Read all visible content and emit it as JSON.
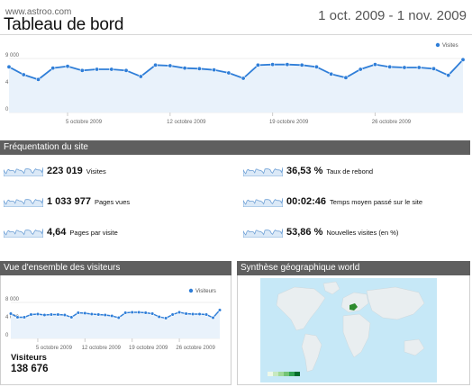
{
  "header": {
    "site_url": "www.astroo.com",
    "title": "Tableau de bord",
    "date_range": "1 oct. 2009 - 1 nov. 2009"
  },
  "colors": {
    "series": "#2f7ed8",
    "section_bar": "#5f5f5f",
    "map_highlight": "#2e8b2e",
    "map_land": "#e9eef0",
    "map_water": "#c6e8f7"
  },
  "main_chart": {
    "legend": "Visites"
  },
  "sections": {
    "frequentation": "Fréquentation du site",
    "visitors_overview": "Vue d'ensemble des visiteurs",
    "geo_overview": "Synthèse géographique world"
  },
  "metrics": [
    {
      "value": "223 019",
      "label": "Visites"
    },
    {
      "value": "1 033 977",
      "label": "Pages vues"
    },
    {
      "value": "4,64",
      "label": "Pages par visite"
    },
    {
      "value": "36,53 %",
      "label": "Taux de rebond"
    },
    {
      "value": "00:02:46",
      "label": "Temps moyen passé sur le site"
    },
    {
      "value": "53,86 %",
      "label": "Nouvelles visites (en %)"
    }
  ],
  "visitors_panel": {
    "label": "Visiteurs",
    "value": "138 676"
  },
  "chart_data": [
    {
      "type": "line",
      "title": "",
      "legend": "top-right",
      "series": [
        {
          "name": "Visites",
          "values": [
            7600,
            6300,
            5500,
            7400,
            7700,
            7000,
            7200,
            7200,
            7000,
            6000,
            7900,
            7800,
            7400,
            7300,
            7100,
            6600,
            5700,
            7900,
            8000,
            8000,
            7900,
            7600,
            6400,
            5800,
            7200,
            8000,
            7600,
            7500,
            7500,
            7300,
            6200,
            8800
          ]
        }
      ],
      "x_ticks": [
        "5 octobre 2009",
        "12 octobre 2009",
        "19 octobre 2009",
        "26 octobre 2009"
      ],
      "y_ticks": [
        "9 000",
        "4 500",
        "0"
      ],
      "ylim": [
        0,
        9000
      ],
      "grid": true
    },
    {
      "type": "line",
      "title": "",
      "legend": "top-right",
      "series": [
        {
          "name": "Visiteurs",
          "values": [
            5500,
            4700,
            4700,
            5300,
            5400,
            5200,
            5300,
            5300,
            5200,
            4700,
            5700,
            5600,
            5400,
            5300,
            5200,
            5000,
            4600,
            5700,
            5800,
            5800,
            5700,
            5500,
            4800,
            4500,
            5300,
            5800,
            5500,
            5400,
            5400,
            5300,
            4600,
            6300
          ]
        }
      ],
      "x_ticks": [
        "5 octobre 2009",
        "12 octobre 2009",
        "19 octobre 2009",
        "26 octobre 2009"
      ],
      "y_ticks": [
        "8 000",
        "4 000",
        "0"
      ],
      "ylim": [
        0,
        8000
      ],
      "grid": true
    }
  ]
}
